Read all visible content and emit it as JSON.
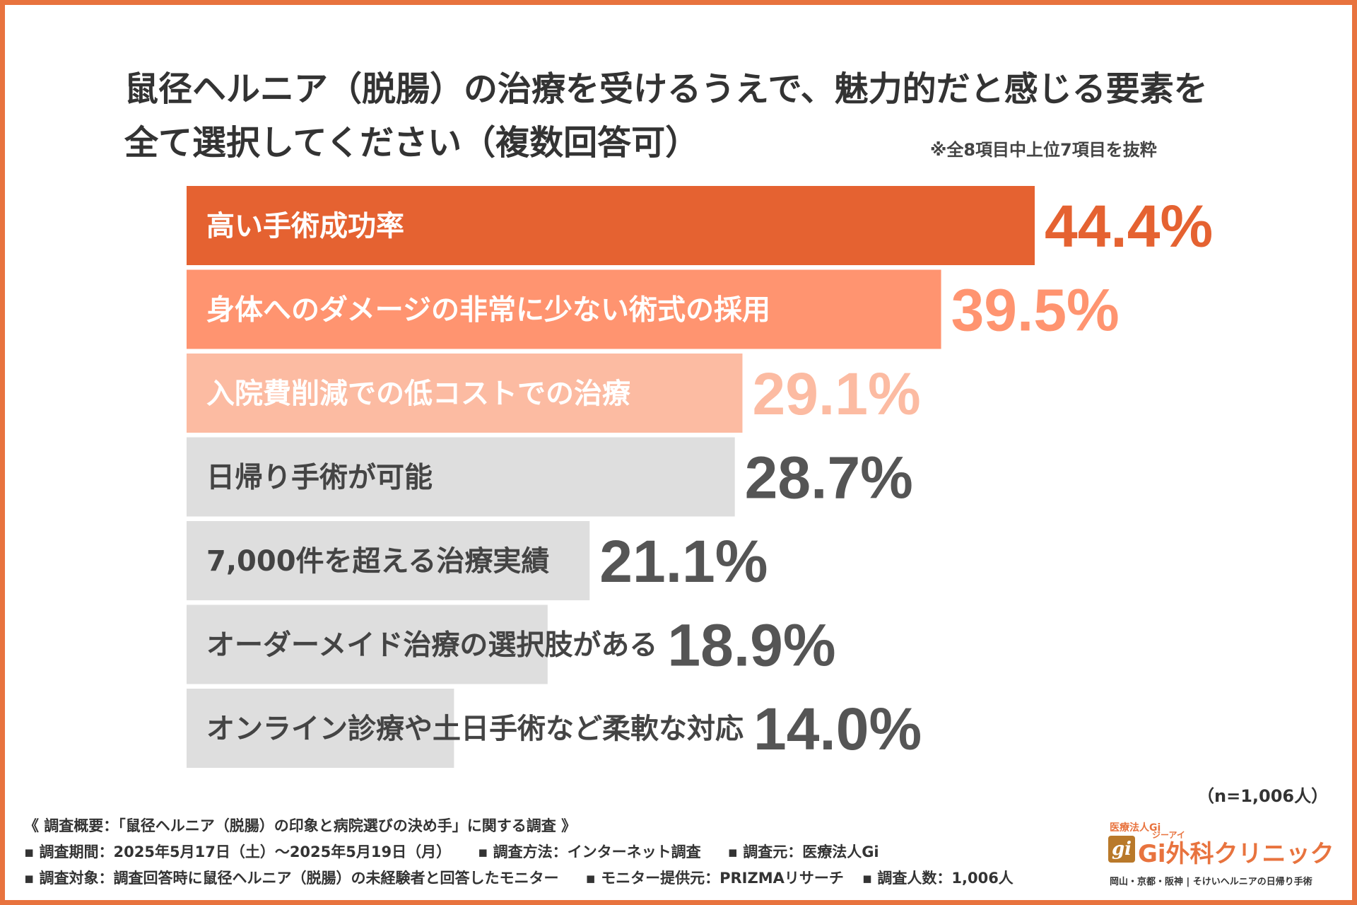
{
  "title": {
    "line1": "鼠径ヘルニア（脱腸）の治療を受けるうえで、魅力的だと感じる要素を",
    "line2": "全て選択してください（複数回答可）"
  },
  "note_top": "※全8項目中上位7項目を抜粋",
  "chart_data": {
    "type": "bar",
    "orientation": "horizontal",
    "title": "鼠径ヘルニア（脱腸）の治療を受けるうえで、魅力的だと感じる要素を全て選択してください（複数回答可）",
    "categories": [
      "高い手術成功率",
      "身体へのダメージの非常に少ない術式の採用",
      "入院費削減での低コストでの治療",
      "日帰り手術が可能",
      "7,000件を超える治療実績",
      "オーダーメイド治療の選択肢がある",
      "オンライン診療や土日手術など柔軟な対応"
    ],
    "values": [
      44.4,
      39.5,
      29.1,
      28.7,
      21.1,
      18.9,
      14.0
    ],
    "value_labels": [
      "44.4%",
      "39.5%",
      "29.1%",
      "28.7%",
      "21.1%",
      "18.9%",
      "14.0%"
    ],
    "unit": "%",
    "xlim": [
      0,
      44.4
    ],
    "bar_colors": [
      "#e56231",
      "#ff9470",
      "#fcbba2",
      "#dedede",
      "#dedede",
      "#dedede",
      "#dedede"
    ],
    "label_colors": [
      "#ffffff",
      "#ffffff",
      "#ffffff",
      "#444444",
      "#444444",
      "#444444",
      "#444444"
    ],
    "value_colors": [
      "#e56231",
      "#ff9470",
      "#fcbba2",
      "#555555",
      "#555555",
      "#555555",
      "#555555"
    ]
  },
  "n_note": "（n=1,006人）",
  "survey": {
    "line1": "《 調査概要：「鼠径ヘルニア（脱腸）の印象と病院選びの決め手」に関する調査 》",
    "period": "▪ 調査期間：2025年5月17日（土）～2025年5月19日（月）",
    "method": "▪ 調査方法：インターネット調査",
    "source": "▪ 調査元：医療法人Gi",
    "target": "▪ 調査対象：調査回答時に鼠径ヘルニア（脱腸）の未経験者と回答したモニター",
    "provider": "▪ モニター提供元：PRIZMAリサーチ",
    "count": "▪ 調査人数：1,006人"
  },
  "logo": {
    "corp": "医療法人Gi",
    "mark": "gi",
    "ruby": "ジーアイ",
    "name": "Gi外科クリニック",
    "tagline": "岡山・京都・阪神 | そけいヘルニアの日帰り手術"
  },
  "colors": {
    "border": "#e8733e",
    "accent": "#e56231"
  }
}
